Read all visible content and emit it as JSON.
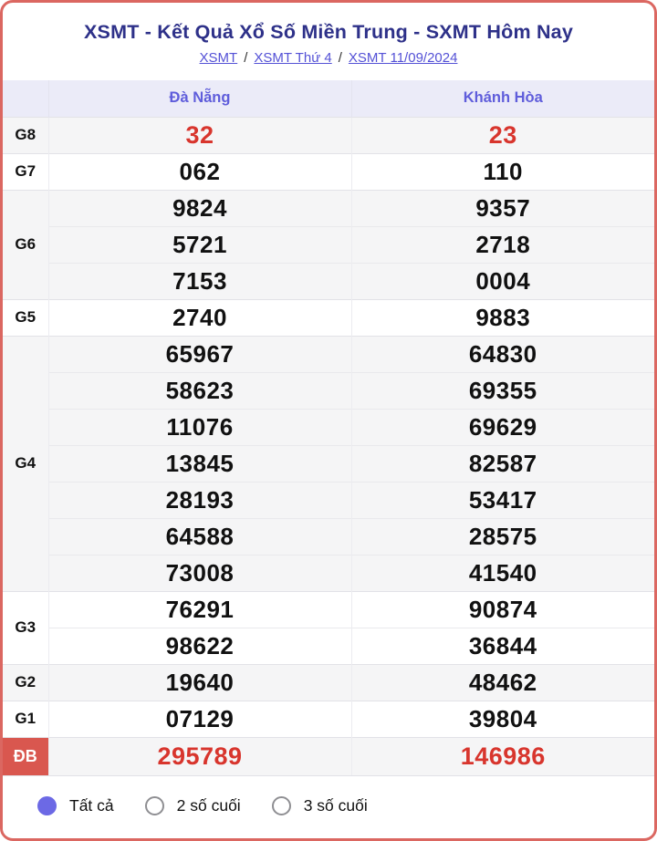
{
  "page": {
    "title": "XSMT - Kết Quả Xổ Số Miền Trung - SXMT Hôm Nay",
    "breadcrumb_separator": "/",
    "breadcrumb": [
      {
        "label": "XSMT"
      },
      {
        "label": "XSMT Thứ 4"
      },
      {
        "label": "XSMT 11/09/2024"
      }
    ]
  },
  "table": {
    "columns": [
      "Đà Nẵng",
      "Khánh Hòa"
    ],
    "groups": [
      {
        "prize": "G8",
        "highlight": true,
        "special": false,
        "rows": [
          [
            "32",
            "23"
          ]
        ]
      },
      {
        "prize": "G7",
        "highlight": false,
        "special": false,
        "rows": [
          [
            "062",
            "110"
          ]
        ]
      },
      {
        "prize": "G6",
        "highlight": false,
        "special": false,
        "rows": [
          [
            "9824",
            "9357"
          ],
          [
            "5721",
            "2718"
          ],
          [
            "7153",
            "0004"
          ]
        ]
      },
      {
        "prize": "G5",
        "highlight": false,
        "special": false,
        "rows": [
          [
            "2740",
            "9883"
          ]
        ]
      },
      {
        "prize": "G4",
        "highlight": false,
        "special": false,
        "rows": [
          [
            "65967",
            "64830"
          ],
          [
            "58623",
            "69355"
          ],
          [
            "11076",
            "69629"
          ],
          [
            "13845",
            "82587"
          ],
          [
            "28193",
            "53417"
          ],
          [
            "64588",
            "28575"
          ],
          [
            "73008",
            "41540"
          ]
        ]
      },
      {
        "prize": "G3",
        "highlight": false,
        "special": false,
        "rows": [
          [
            "76291",
            "90874"
          ],
          [
            "98622",
            "36844"
          ]
        ]
      },
      {
        "prize": "G2",
        "highlight": false,
        "special": false,
        "rows": [
          [
            "19640",
            "48462"
          ]
        ]
      },
      {
        "prize": "G1",
        "highlight": false,
        "special": false,
        "rows": [
          [
            "07129",
            "39804"
          ]
        ]
      },
      {
        "prize": "ĐB",
        "highlight": true,
        "special": true,
        "rows": [
          [
            "295789",
            "146986"
          ]
        ]
      }
    ]
  },
  "filters": {
    "options": [
      {
        "label": "Tất cả",
        "selected": true
      },
      {
        "label": "2 số cuối",
        "selected": false
      },
      {
        "label": "3 số cuối",
        "selected": false
      }
    ]
  },
  "colors": {
    "card_border": "#db6761",
    "title_navy": "#2e3189",
    "link_purple": "#5451d6",
    "column_header_text": "#5f5ddb",
    "column_header_bg": "#ebebf8",
    "stripe_gray": "#f5f5f6",
    "value_red": "#d8352d",
    "special_label_bg": "#d9574f",
    "radio_selected": "#6c69e5"
  }
}
